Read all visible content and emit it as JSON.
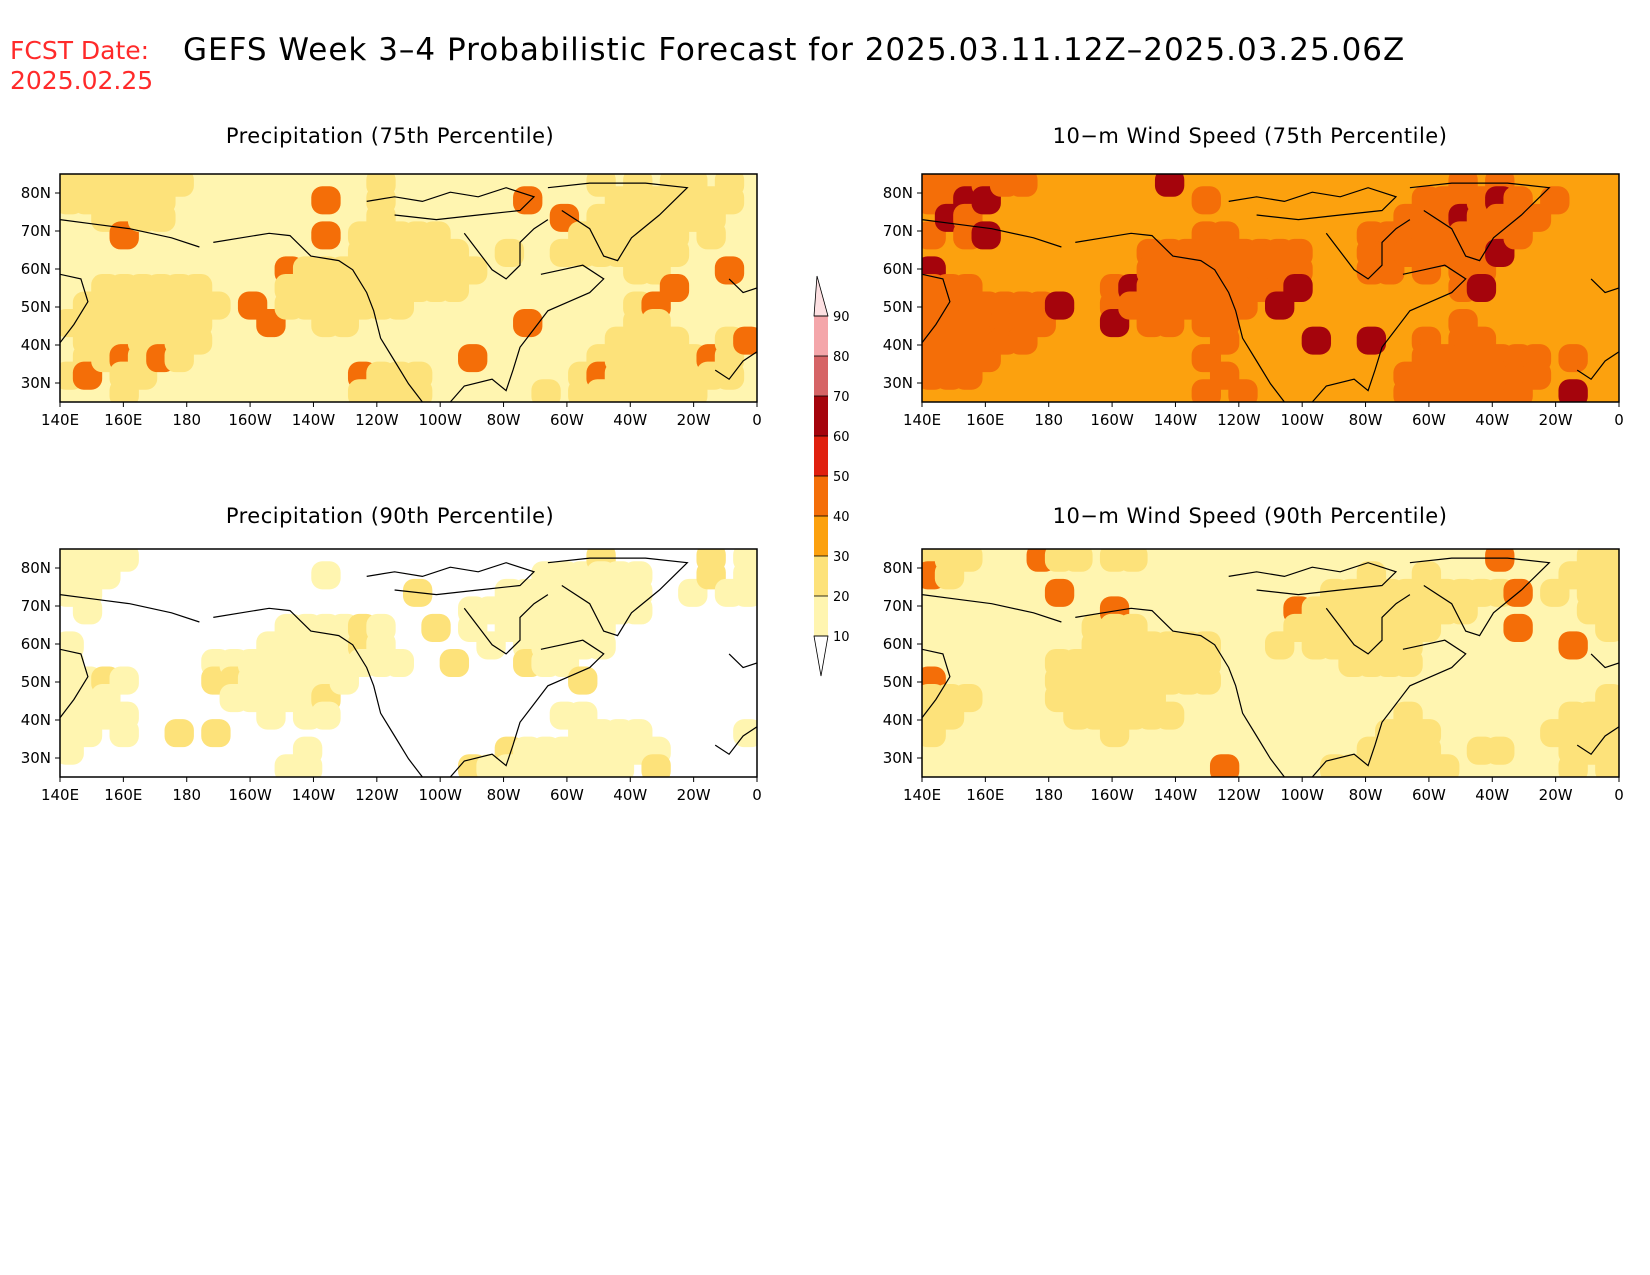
{
  "header": {
    "fcst_label": "FCST Date:",
    "fcst_date": "2025.02.25",
    "title": "GEFS Week 3–4 Probabilistic Forecast for 2025.03.11.12Z–2025.03.25.06Z"
  },
  "colors": {
    "white": "#ffffff",
    "c10": "#fff5b0",
    "c20": "#fde27a",
    "c30": "#fca10e",
    "c40": "#f46e08",
    "c50": "#e0200e",
    "c60": "#a5040c",
    "c70": "#d66466",
    "c80": "#f4a6aa",
    "c90": "#fde0e2"
  },
  "axes": {
    "lon_labels": [
      "140E",
      "160E",
      "180",
      "160W",
      "140W",
      "120W",
      "100W",
      "80W",
      "60W",
      "40W",
      "20W",
      "0"
    ],
    "lat_labels": [
      "80N",
      "70N",
      "60N",
      "50N",
      "40N",
      "30N"
    ]
  },
  "panels": [
    {
      "title": "Precipitation (75th Percentile)",
      "background": "c10",
      "dominant": "c20",
      "peak": "c40"
    },
    {
      "title": "10−m Wind Speed (75th Percentile)",
      "background": "c30",
      "dominant": "c40",
      "peak": "c60"
    },
    {
      "title": "Precipitation (90th Percentile)",
      "background": "white",
      "dominant": "c10",
      "peak": "c20"
    },
    {
      "title": "10−m Wind Speed (90th Percentile)",
      "background": "c10",
      "dominant": "c20",
      "peak": "c40"
    }
  ],
  "colorbar": {
    "levels": [
      "10",
      "20",
      "30",
      "40",
      "50",
      "60",
      "70",
      "80",
      "90"
    ]
  }
}
